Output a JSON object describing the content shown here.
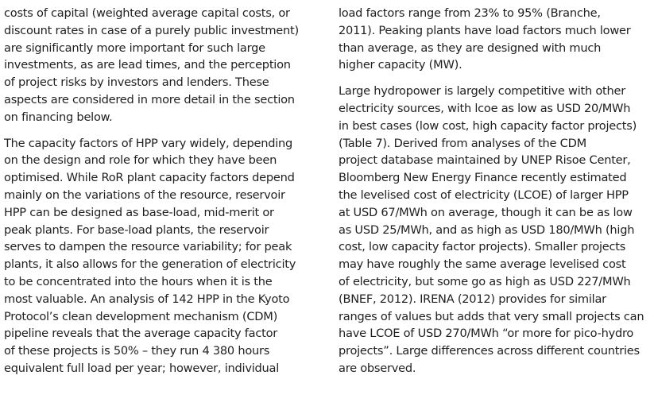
{
  "left_column": {
    "paragraphs": [
      {
        "lines": [
          "costs of capital (weighted average capital costs, or",
          "discount rates in case of a purely public investment)",
          "are significantly more important for such large",
          "investments, as are lead times, and the perception",
          "of project risks by investors and lenders. These",
          "aspects are considered in more detail in the section",
          "on financing below."
        ]
      },
      {
        "lines": [
          "The capacity factors of HPP vary widely, depending",
          "on the design and role for which they have been",
          "optimised. While RoR plant capacity factors depend",
          "mainly on the variations of the resource, reservoir",
          "HPP can be designed as base-load, mid-merit or",
          "peak plants. For base-load plants, the reservoir",
          "serves to dampen the resource variability; for peak",
          "plants, it also allows for the generation of electricity",
          "to be concentrated into the hours when it is the",
          "most valuable. An analysis of 142 HPP in the Kyoto",
          "Protocol’s clean development mechanism (CDM)",
          "pipeline reveals that the average capacity factor",
          "of these projects is 50% – they run 4 380 hours",
          "equivalent full load per year; however, individual"
        ]
      }
    ]
  },
  "right_column": {
    "paragraphs": [
      {
        "lines": [
          "load factors range from 23% to 95% (Branche,",
          "2011). Peaking plants have load factors much lower",
          "than average, as they are designed with much",
          "higher capacity (MW)."
        ]
      },
      {
        "lines": [
          "Large hydropower is largely competitive with other",
          "electricity sources, with lcoe as low as USD 20/MWh",
          "in best cases (low cost, high capacity factor projects)",
          "(Table 7). Derived from analyses of the CDM",
          "project database maintained by UNEP Risoe Center,",
          "Bloomberg New Energy Finance recently estimated",
          "the levelised cost of electricity (LCOE) of larger HPP",
          "at USD 67/MWh on average, though it can be as low",
          "as USD 25/MWh, and as high as USD 180/MWh (high",
          "cost, low capacity factor projects). Smaller projects",
          "may have roughly the same average levelised cost",
          "of electricity, but some go as high as USD 227/MWh",
          "(BNEF, 2012). IRENA (2012) provides for similar",
          "ranges of values but adds that very small projects can",
          "have LCOE of USD 270/MWh “or more for pico-hydro",
          "projects”. Large differences across different countries",
          "are observed."
        ]
      }
    ]
  }
}
